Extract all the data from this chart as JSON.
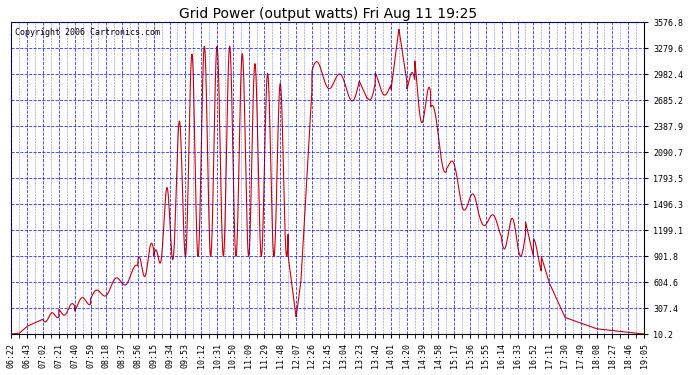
{
  "title": "Grid Power (output watts) Fri Aug 11 19:25",
  "copyright": "Copyright 2006 Cartronics.com",
  "background_color": "#ffffff",
  "plot_bg_color": "#ffffff",
  "grid_color": "#0000ff",
  "line_color": "#cc0000",
  "line_width": 0.8,
  "y_ticks": [
    10.2,
    307.4,
    604.6,
    901.8,
    1199.1,
    1496.3,
    1793.5,
    2090.7,
    2387.9,
    2685.2,
    2982.4,
    3279.6,
    3576.8
  ],
  "x_tick_labels": [
    "06:22",
    "06:43",
    "07:02",
    "07:21",
    "07:40",
    "07:59",
    "08:18",
    "08:37",
    "08:56",
    "09:15",
    "09:34",
    "09:53",
    "10:12",
    "10:31",
    "10:50",
    "11:09",
    "11:29",
    "11:48",
    "12:07",
    "12:26",
    "12:45",
    "13:04",
    "13:23",
    "13:42",
    "14:01",
    "14:20",
    "14:39",
    "14:58",
    "15:17",
    "15:36",
    "15:55",
    "16:14",
    "16:33",
    "16:52",
    "17:11",
    "17:30",
    "17:49",
    "18:08",
    "18:27",
    "18:46",
    "19:05"
  ],
  "ymin": 10.2,
  "ymax": 3576.8,
  "xmin": 0,
  "xmax": 40,
  "title_fontsize": 10,
  "tick_fontsize": 6,
  "copyright_fontsize": 6
}
